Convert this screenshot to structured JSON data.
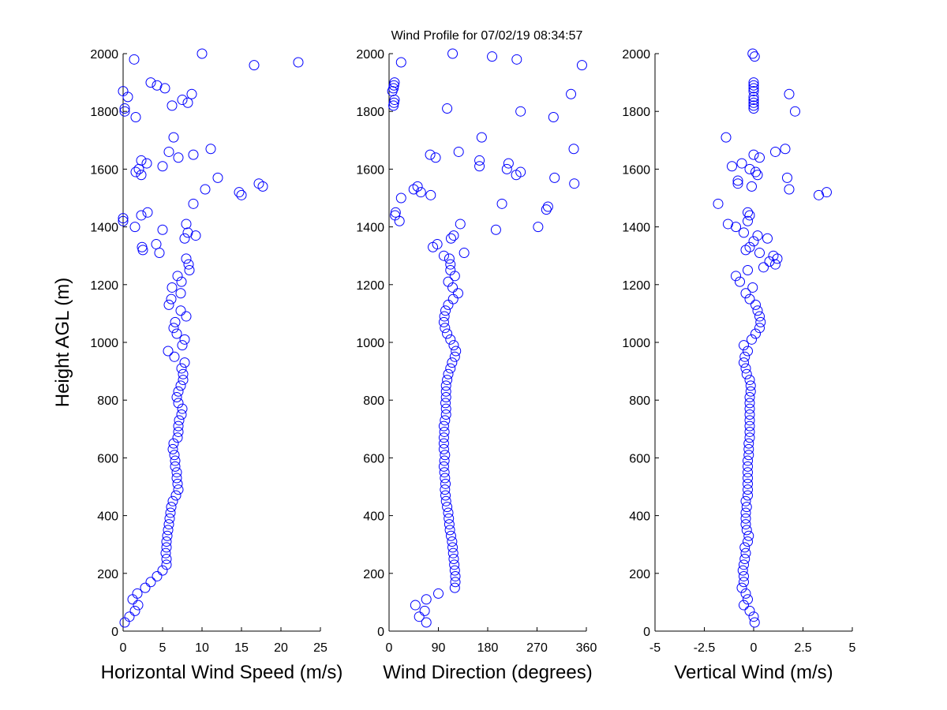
{
  "chart_data": [
    {
      "type": "scatter",
      "title": "Wind Profile for  07/02/19 08:34:57",
      "ylabel": "Height AGL (m)",
      "xlabel": "Horizontal Wind Speed (m/s)",
      "xlim": [
        0,
        25
      ],
      "xticks": [
        0,
        5,
        10,
        15,
        20,
        25
      ],
      "ylim": [
        0,
        2000
      ],
      "yticks": [
        0,
        200,
        400,
        600,
        800,
        1000,
        1200,
        1400,
        1600,
        1800,
        2000
      ],
      "color": "#0000ff",
      "x": [
        0.2,
        0.8,
        1.5,
        1.9,
        1.2,
        1.8,
        2.8,
        3.5,
        4.3,
        5.0,
        5.5,
        5.5,
        5.4,
        5.5,
        5.5,
        5.6,
        5.7,
        5.8,
        5.9,
        6.0,
        6.1,
        6.3,
        6.7,
        7.0,
        6.9,
        6.8,
        6.8,
        6.6,
        6.6,
        6.5,
        6.3,
        6.4,
        6.9,
        7.0,
        7.0,
        7.1,
        7.4,
        7.5,
        7.0,
        6.8,
        7.0,
        7.3,
        7.6,
        7.6,
        7.4,
        7.8,
        6.5,
        5.7,
        7.5,
        7.8,
        6.8,
        6.4,
        6.6,
        8.0,
        7.3,
        5.8,
        6.1,
        7.3,
        6.2,
        7.4,
        6.9,
        8.4,
        8.3,
        8.0,
        2.5,
        2.4,
        4.6,
        4.2,
        7.8,
        8.2,
        9.2,
        5.0,
        8.0,
        1.5,
        0,
        0,
        2.3,
        3.1,
        8.9,
        14.7,
        15.0,
        10.4,
        17.2,
        17.7,
        12.0,
        2.3,
        1.6,
        2.0,
        5.0,
        3.0,
        2.3,
        7.0,
        5.8,
        8.9,
        11.1,
        6.4,
        1.6,
        0.2,
        0.2,
        6.2,
        8.2,
        7.5,
        0.6,
        8.7,
        0,
        5.3,
        4.3,
        3.5,
        16.6,
        22.2,
        1.4,
        10.0
      ],
      "y": [
        30,
        50,
        70,
        90,
        110,
        130,
        150,
        170,
        190,
        210,
        230,
        250,
        270,
        290,
        310,
        330,
        350,
        370,
        390,
        410,
        430,
        450,
        470,
        490,
        510,
        530,
        550,
        570,
        590,
        610,
        630,
        650,
        670,
        690,
        710,
        730,
        750,
        770,
        790,
        810,
        830,
        850,
        870,
        890,
        910,
        930,
        950,
        970,
        990,
        1010,
        1030,
        1050,
        1070,
        1090,
        1110,
        1130,
        1150,
        1170,
        1190,
        1210,
        1230,
        1250,
        1270,
        1290,
        1320,
        1330,
        1310,
        1340,
        1360,
        1380,
        1370,
        1390,
        1410,
        1400,
        1420,
        1430,
        1440,
        1450,
        1480,
        1520,
        1510,
        1530,
        1550,
        1540,
        1570,
        1580,
        1590,
        1600,
        1610,
        1620,
        1630,
        1640,
        1660,
        1650,
        1670,
        1710,
        1780,
        1800,
        1810,
        1820,
        1830,
        1840,
        1850,
        1860,
        1870,
        1880,
        1890,
        1900,
        1960,
        1970,
        1980,
        2000
      ]
    },
    {
      "type": "scatter",
      "xlabel": "Wind Direction (degrees)",
      "xlim": [
        0,
        360
      ],
      "xticks": [
        0,
        90,
        180,
        270,
        360
      ],
      "ylim": [
        0,
        2000
      ],
      "yticks": [
        0,
        200,
        400,
        600,
        800,
        1000,
        1200,
        1400,
        1600,
        1800,
        2000
      ],
      "color": "#0000ff",
      "x": [
        68,
        55,
        65,
        48,
        68,
        90,
        120,
        121,
        121,
        120,
        119,
        118,
        117,
        116,
        115,
        113,
        111,
        110,
        109,
        108,
        106,
        104,
        103,
        102,
        103,
        102,
        101,
        100,
        101,
        102,
        100,
        100,
        100,
        101,
        100,
        102,
        104,
        104,
        103,
        104,
        104,
        104,
        106,
        108,
        112,
        115,
        120,
        122,
        118,
        112,
        106,
        102,
        100,
        101,
        103,
        108,
        117,
        126,
        116,
        108,
        120,
        112,
        112,
        110,
        137,
        100,
        80,
        88,
        118,
        113,
        130,
        195,
        272,
        11,
        12,
        19,
        22,
        76,
        45,
        52,
        58,
        206,
        287,
        290,
        338,
        302,
        232,
        215,
        218,
        240,
        165,
        165,
        337,
        127,
        75,
        85,
        169,
        300,
        240,
        106,
        332,
        6,
        8,
        9,
        10,
        8,
        9,
        10,
        22,
        116,
        188,
        233,
        352
      ],
      "y": [
        30,
        50,
        70,
        90,
        110,
        130,
        150,
        170,
        190,
        210,
        230,
        250,
        270,
        290,
        310,
        330,
        350,
        370,
        390,
        410,
        430,
        450,
        470,
        490,
        510,
        530,
        550,
        570,
        590,
        610,
        630,
        650,
        670,
        690,
        710,
        730,
        750,
        770,
        790,
        810,
        830,
        850,
        870,
        890,
        910,
        930,
        950,
        970,
        990,
        1010,
        1030,
        1050,
        1070,
        1090,
        1110,
        1130,
        1150,
        1170,
        1190,
        1210,
        1230,
        1250,
        1270,
        1290,
        1310,
        1300,
        1330,
        1340,
        1370,
        1360,
        1410,
        1390,
        1400,
        1440,
        1450,
        1420,
        1500,
        1510,
        1530,
        1540,
        1520,
        1480,
        1460,
        1470,
        1550,
        1570,
        1580,
        1600,
        1620,
        1590,
        1610,
        1630,
        1670,
        1660,
        1650,
        1640,
        1710,
        1780,
        1800,
        1810,
        1860,
        1870,
        1820,
        1830,
        1840,
        1880,
        1890,
        1900,
        1970,
        2000,
        1990,
        1980,
        1960
      ]
    },
    {
      "type": "scatter",
      "xlabel": "Vertical Wind (m/s)",
      "xlim": [
        -5,
        5
      ],
      "xticks": [
        -5,
        -2.5,
        0,
        2.5,
        5
      ],
      "ylim": [
        0,
        2000
      ],
      "yticks": [
        0,
        200,
        400,
        600,
        800,
        1000,
        1200,
        1400,
        1600,
        1800,
        2000
      ],
      "color": "#0000ff",
      "x": [
        0.05,
        0,
        -0.2,
        -0.5,
        -0.3,
        -0.4,
        -0.6,
        -0.5,
        -0.5,
        -0.55,
        -0.5,
        -0.45,
        -0.4,
        -0.45,
        -0.3,
        -0.25,
        -0.35,
        -0.4,
        -0.4,
        -0.4,
        -0.35,
        -0.4,
        -0.3,
        -0.3,
        -0.3,
        -0.3,
        -0.3,
        -0.3,
        -0.3,
        -0.25,
        -0.25,
        -0.25,
        -0.2,
        -0.2,
        -0.2,
        -0.2,
        -0.2,
        -0.2,
        -0.2,
        -0.2,
        -0.15,
        -0.15,
        -0.2,
        -0.35,
        -0.4,
        -0.5,
        -0.45,
        -0.3,
        -0.5,
        -0.1,
        0.1,
        0.3,
        0.35,
        0.3,
        0.2,
        0.1,
        -0.2,
        -0.4,
        -0.05,
        -0.7,
        -0.9,
        -0.3,
        1.1,
        1.2,
        0.8,
        1.0,
        0.3,
        0.5,
        -0.4,
        -0.2,
        0,
        0.2,
        0.7,
        -0.5,
        -0.9,
        -1.3,
        -0.3,
        -0.2,
        -0.3,
        -1.8,
        3.3,
        3.7,
        1.8,
        1.7,
        -0.8,
        -0.8,
        -0.1,
        0.2,
        0.1,
        -1.1,
        -0.6,
        -0.2,
        0.3,
        0,
        1.6,
        1.1,
        -1.4,
        2.1,
        1.8,
        0,
        0,
        0,
        0,
        0,
        0,
        0,
        0,
        0,
        0.05,
        -0.05
      ],
      "y": [
        30,
        50,
        70,
        90,
        110,
        130,
        150,
        170,
        190,
        210,
        230,
        250,
        270,
        290,
        310,
        330,
        350,
        370,
        390,
        410,
        430,
        450,
        470,
        490,
        510,
        530,
        550,
        570,
        590,
        610,
        630,
        650,
        670,
        690,
        710,
        730,
        750,
        770,
        790,
        810,
        830,
        850,
        870,
        890,
        910,
        930,
        950,
        970,
        990,
        1010,
        1030,
        1050,
        1070,
        1090,
        1110,
        1130,
        1150,
        1170,
        1190,
        1210,
        1230,
        1250,
        1270,
        1290,
        1280,
        1300,
        1310,
        1260,
        1320,
        1330,
        1350,
        1370,
        1360,
        1380,
        1400,
        1410,
        1420,
        1440,
        1450,
        1480,
        1510,
        1520,
        1530,
        1570,
        1550,
        1560,
        1540,
        1580,
        1590,
        1610,
        1620,
        1600,
        1640,
        1650,
        1670,
        1660,
        1710,
        1800,
        1860,
        1820,
        1830,
        1840,
        1850,
        1870,
        1880,
        1890,
        1900,
        1810,
        1990,
        2000
      ]
    }
  ]
}
